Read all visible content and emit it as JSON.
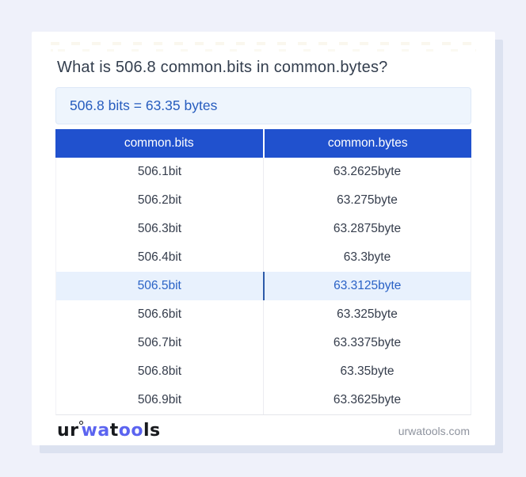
{
  "title": "What is 506.8 common.bits in common.bytes?",
  "result": {
    "text": "506.8 bits = 63.35 bytes"
  },
  "table": {
    "headers": {
      "bits": "common.bits",
      "bytes": "common.bytes"
    },
    "rows": [
      {
        "bits": "506.1bit",
        "bytes": "63.2625byte"
      },
      {
        "bits": "506.2bit",
        "bytes": "63.275byte"
      },
      {
        "bits": "506.3bit",
        "bytes": "63.2875byte"
      },
      {
        "bits": "506.4bit",
        "bytes": "63.3byte"
      },
      {
        "bits": "506.5bit",
        "bytes": "63.3125byte",
        "highlighted": true
      },
      {
        "bits": "506.6bit",
        "bytes": "63.325byte"
      },
      {
        "bits": "506.7bit",
        "bytes": "63.3375byte"
      },
      {
        "bits": "506.8bit",
        "bytes": "63.35byte"
      },
      {
        "bits": "506.9bit",
        "bytes": "63.3625byte"
      }
    ]
  },
  "footer": {
    "logo": {
      "seg1": "ur",
      "seg2": "wa",
      "seg3": "t",
      "seg4": "oo",
      "seg5": "ls"
    },
    "site": "urwatools.com"
  },
  "colors": {
    "page_bg": "#eff1fa",
    "card_bg": "#ffffff",
    "card_shadow": "#dce2f0",
    "header_bg": "#2051ce",
    "header_text": "#ffffff",
    "result_bg": "#eef5fd",
    "result_text": "#265cbe",
    "body_text": "#353d4c",
    "highlight_bg": "#e8f1fd",
    "highlight_text": "#2a62c6",
    "highlight_divider": "#2d5aa9",
    "logo_blue": "#5b64f0",
    "footer_text": "#8e939e"
  }
}
